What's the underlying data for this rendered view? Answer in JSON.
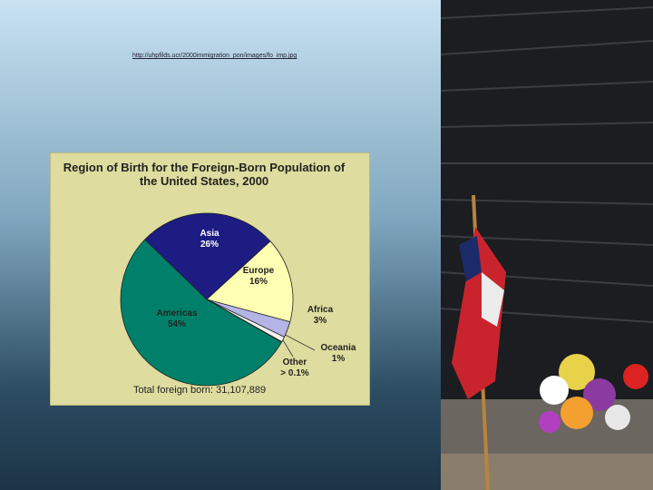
{
  "url": "http://uhpfilds.ucr/2000immigration_pon/images/fo_imp.jpg",
  "chart_data": {
    "type": "pie",
    "title": "Region of Birth for the Foreign-Born Population of the United States, 2000",
    "categories": [
      "Asia",
      "Europe",
      "Africa",
      "Oceania",
      "Other",
      "Americas"
    ],
    "values": [
      26,
      16,
      3,
      1,
      0.1,
      54
    ],
    "value_labels": [
      "26%",
      "16%",
      "3%",
      "1%",
      "> 0.1%",
      "54%"
    ],
    "colors": [
      "#1c1c82",
      "#ffffb4",
      "#b4b4e6",
      "#f2f2f2",
      "#ffffff",
      "#00806a"
    ],
    "annotation": "Total foreign born: 31,107,889"
  }
}
